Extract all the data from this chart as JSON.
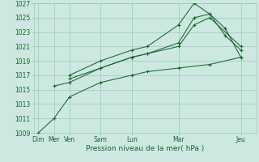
{
  "background_color": "#cce8e0",
  "grid_color": "#99ccbb",
  "line_color": "#1a6630",
  "xlabel": "Pression niveau de la mer( hPa )",
  "ylim": [
    1009,
    1027
  ],
  "yticks": [
    1009,
    1011,
    1013,
    1015,
    1017,
    1019,
    1021,
    1023,
    1025,
    1027
  ],
  "xtick_labels": [
    "Dim",
    "Mer",
    "Ven",
    "Sam",
    "Lun",
    "Mar",
    "Jeu"
  ],
  "xtick_positions": [
    0,
    1,
    2,
    4,
    6,
    9,
    13
  ],
  "xlim": [
    -0.3,
    14
  ],
  "lines": [
    {
      "x": [
        0,
        1,
        2,
        4,
        6,
        7,
        9,
        11,
        13
      ],
      "y": [
        1009,
        1011,
        1014,
        1016,
        1017,
        1017.5,
        1018,
        1018.5,
        1019.5
      ]
    },
    {
      "x": [
        1,
        2,
        4,
        6,
        7,
        9,
        10,
        11,
        13
      ],
      "y": [
        1015.5,
        1016,
        1018,
        1019.5,
        1020,
        1021,
        1024,
        1025,
        1021
      ]
    },
    {
      "x": [
        2,
        4,
        6,
        7,
        9,
        10,
        11,
        12,
        13
      ],
      "y": [
        1016.5,
        1018,
        1019.5,
        1020,
        1021.5,
        1025,
        1025.5,
        1022.5,
        1020.5
      ]
    },
    {
      "x": [
        2,
        4,
        6,
        7,
        9,
        10,
        11,
        12,
        13
      ],
      "y": [
        1017,
        1019,
        1020.5,
        1021,
        1024,
        1027,
        1025.5,
        1023.5,
        1019.5
      ]
    }
  ]
}
